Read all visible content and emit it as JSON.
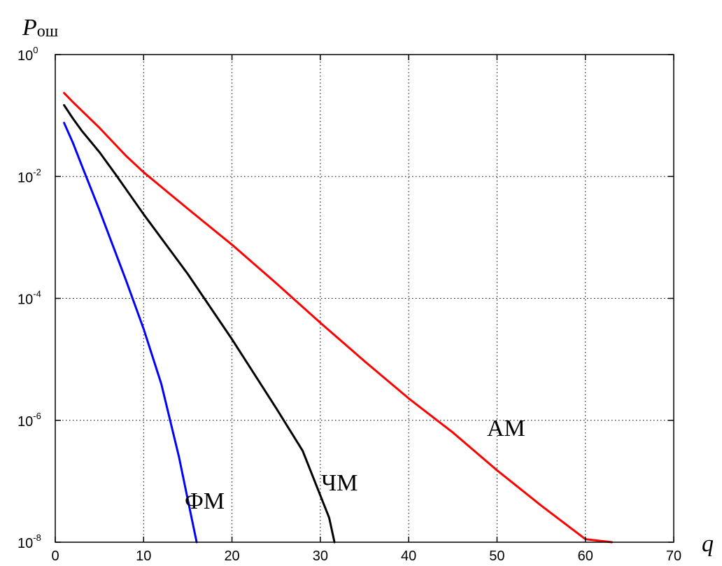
{
  "chart_data": {
    "type": "line",
    "ylabel": "P",
    "ylabel_sub": "ош",
    "xlabel": "q",
    "xlim": [
      0,
      70
    ],
    "ylim_log10": [
      -8,
      0
    ],
    "y_scale": "log",
    "grid": true,
    "x_ticks": [
      "0",
      "10",
      "20",
      "30",
      "40",
      "50",
      "60",
      "70"
    ],
    "y_ticks": [
      {
        "base": "10",
        "exp": "0"
      },
      {
        "base": "10",
        "exp": "-2"
      },
      {
        "base": "10",
        "exp": "-4"
      },
      {
        "base": "10",
        "exp": "-6"
      },
      {
        "base": "10",
        "exp": "-8"
      }
    ],
    "series": [
      {
        "name": "АМ",
        "color": "#ff0000",
        "points": [
          [
            1,
            -0.63
          ],
          [
            2,
            -0.78
          ],
          [
            3,
            -0.92
          ],
          [
            5,
            -1.2
          ],
          [
            8,
            -1.66
          ],
          [
            10,
            -1.93
          ],
          [
            15,
            -2.53
          ],
          [
            20,
            -3.12
          ],
          [
            25,
            -3.75
          ],
          [
            30,
            -4.4
          ],
          [
            35,
            -5.03
          ],
          [
            40,
            -5.64
          ],
          [
            45,
            -6.2
          ],
          [
            50,
            -6.82
          ],
          [
            55,
            -7.4
          ],
          [
            60,
            -7.95
          ],
          [
            63,
            -8.3
          ]
        ]
      },
      {
        "name": "ЧМ",
        "color": "#000000",
        "points": [
          [
            1,
            -0.83
          ],
          [
            2,
            -1.05
          ],
          [
            3,
            -1.25
          ],
          [
            5,
            -1.6
          ],
          [
            7,
            -2.0
          ],
          [
            10,
            -2.62
          ],
          [
            15,
            -3.6
          ],
          [
            20,
            -4.67
          ],
          [
            25,
            -5.8
          ],
          [
            28,
            -6.5
          ],
          [
            31,
            -7.6
          ],
          [
            31.6,
            -8.0
          ]
        ]
      },
      {
        "name": "ФМ",
        "color": "#0000ff",
        "points": [
          [
            1,
            -1.12
          ],
          [
            2,
            -1.45
          ],
          [
            3,
            -1.82
          ],
          [
            5,
            -2.55
          ],
          [
            8,
            -3.7
          ],
          [
            10,
            -4.5
          ],
          [
            12,
            -5.4
          ],
          [
            14,
            -6.6
          ],
          [
            15,
            -7.3
          ],
          [
            16,
            -8.0
          ]
        ]
      }
    ],
    "annotations": [
      {
        "text": "АМ",
        "series": "АМ"
      },
      {
        "text": "ЧМ",
        "series": "ЧМ"
      },
      {
        "text": "ФМ",
        "series": "ФМ"
      }
    ]
  }
}
